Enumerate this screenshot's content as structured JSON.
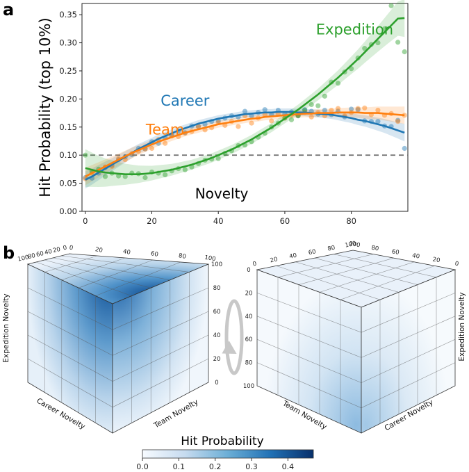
{
  "panels": {
    "a": "a",
    "b": "b"
  },
  "chart_data": [
    {
      "type": "line",
      "panel": "a",
      "ylabel": "Hit Probability (top 10%)",
      "xlabel": "Novelty",
      "xlim": [
        -1,
        97
      ],
      "ylim": [
        0,
        0.37
      ],
      "xticks": [
        0,
        20,
        40,
        60,
        80
      ],
      "yticks": [
        0.0,
        0.05,
        0.1,
        0.15,
        0.2,
        0.25,
        0.3,
        0.35
      ],
      "baseline": 0.1,
      "series": [
        {
          "name": "Career",
          "color": "#1f77b4",
          "x": [
            0,
            2,
            4,
            6,
            8,
            10,
            12,
            14,
            16,
            18,
            20,
            22,
            24,
            26,
            28,
            30,
            32,
            34,
            36,
            38,
            40,
            42,
            44,
            46,
            48,
            50,
            52,
            54,
            56,
            58,
            60,
            62,
            64,
            66,
            68,
            70,
            72,
            74,
            76,
            78,
            80,
            82,
            84,
            86,
            88,
            90,
            92,
            94,
            96
          ],
          "curve": [
            0.056,
            0.062,
            0.069,
            0.076,
            0.083,
            0.09,
            0.097,
            0.104,
            0.111,
            0.117,
            0.123,
            0.129,
            0.134,
            0.139,
            0.144,
            0.148,
            0.152,
            0.156,
            0.159,
            0.162,
            0.165,
            0.167,
            0.169,
            0.171,
            0.173,
            0.174,
            0.175,
            0.176,
            0.176,
            0.177,
            0.177,
            0.177,
            0.176,
            0.176,
            0.175,
            0.174,
            0.173,
            0.172,
            0.17,
            0.168,
            0.166,
            0.163,
            0.161,
            0.158,
            0.155,
            0.152,
            0.148,
            0.144,
            0.14
          ],
          "points_x": [
            0,
            2,
            4,
            6,
            8,
            10,
            12,
            14,
            16,
            18,
            20,
            22,
            24,
            26,
            28,
            30,
            32,
            34,
            36,
            38,
            40,
            42,
            44,
            46,
            48,
            50,
            52,
            54,
            56,
            58,
            60,
            62,
            64,
            66,
            68,
            70,
            72,
            74,
            76,
            78,
            80,
            82,
            84,
            86,
            88,
            90,
            92,
            94,
            96
          ],
          "points_y": [
            0.06,
            0.059,
            0.068,
            0.078,
            0.082,
            0.092,
            0.097,
            0.101,
            0.112,
            0.111,
            0.124,
            0.121,
            0.131,
            0.135,
            0.143,
            0.14,
            0.152,
            0.151,
            0.155,
            0.16,
            0.161,
            0.166,
            0.17,
            0.168,
            0.178,
            0.17,
            0.176,
            0.181,
            0.172,
            0.18,
            0.173,
            0.177,
            0.17,
            0.181,
            0.178,
            0.173,
            0.18,
            0.172,
            0.178,
            0.168,
            0.182,
            0.181,
            0.161,
            0.16,
            0.16,
            0.152,
            0.151,
            0.162,
            0.112
          ]
        },
        {
          "name": "Team",
          "color": "#ff7f0e",
          "x": [
            0,
            2,
            4,
            6,
            8,
            10,
            12,
            14,
            16,
            18,
            20,
            22,
            24,
            26,
            28,
            30,
            32,
            34,
            36,
            38,
            40,
            42,
            44,
            46,
            48,
            50,
            52,
            54,
            56,
            58,
            60,
            62,
            64,
            66,
            68,
            70,
            72,
            74,
            76,
            78,
            80,
            82,
            84,
            86,
            88,
            90,
            92,
            94,
            96
          ],
          "curve": [
            0.062,
            0.068,
            0.074,
            0.08,
            0.086,
            0.092,
            0.098,
            0.104,
            0.109,
            0.114,
            0.119,
            0.124,
            0.128,
            0.132,
            0.136,
            0.14,
            0.143,
            0.146,
            0.149,
            0.152,
            0.155,
            0.157,
            0.159,
            0.161,
            0.163,
            0.165,
            0.166,
            0.168,
            0.169,
            0.17,
            0.171,
            0.172,
            0.173,
            0.174,
            0.174,
            0.175,
            0.175,
            0.175,
            0.176,
            0.176,
            0.176,
            0.176,
            0.175,
            0.175,
            0.175,
            0.174,
            0.173,
            0.172,
            0.171
          ],
          "points_x": [
            0,
            2,
            4,
            6,
            8,
            10,
            12,
            14,
            16,
            18,
            20,
            22,
            24,
            26,
            28,
            30,
            32,
            34,
            36,
            38,
            40,
            42,
            44,
            46,
            48,
            50,
            52,
            54,
            56,
            58,
            60,
            62,
            64,
            66,
            68,
            70,
            72,
            74,
            76,
            78,
            80,
            82,
            84,
            86,
            88,
            90,
            92,
            94,
            96
          ],
          "points_y": [
            0.058,
            0.068,
            0.071,
            0.079,
            0.08,
            0.094,
            0.092,
            0.103,
            0.107,
            0.111,
            0.112,
            0.128,
            0.121,
            0.134,
            0.133,
            0.139,
            0.142,
            0.151,
            0.145,
            0.149,
            0.158,
            0.153,
            0.16,
            0.151,
            0.17,
            0.157,
            0.166,
            0.172,
            0.161,
            0.173,
            0.166,
            0.172,
            0.171,
            0.176,
            0.168,
            0.176,
            0.17,
            0.18,
            0.183,
            0.17,
            0.176,
            0.183,
            0.184,
            0.172,
            0.18,
            0.171,
            0.174,
            0.16,
            0.171
          ]
        },
        {
          "name": "Expedition",
          "color": "#2ca02c",
          "x": [
            0,
            2,
            4,
            6,
            8,
            10,
            12,
            14,
            16,
            18,
            20,
            22,
            24,
            26,
            28,
            30,
            32,
            34,
            36,
            38,
            40,
            42,
            44,
            46,
            48,
            50,
            52,
            54,
            56,
            58,
            60,
            62,
            64,
            66,
            68,
            70,
            72,
            74,
            76,
            78,
            80,
            82,
            84,
            86,
            88,
            90,
            92,
            94,
            96
          ],
          "curve": [
            0.077,
            0.074,
            0.071,
            0.069,
            0.068,
            0.067,
            0.066,
            0.066,
            0.066,
            0.067,
            0.068,
            0.07,
            0.072,
            0.074,
            0.077,
            0.08,
            0.083,
            0.087,
            0.091,
            0.095,
            0.1,
            0.105,
            0.11,
            0.116,
            0.122,
            0.128,
            0.135,
            0.142,
            0.149,
            0.157,
            0.165,
            0.173,
            0.181,
            0.19,
            0.199,
            0.208,
            0.218,
            0.228,
            0.238,
            0.249,
            0.26,
            0.271,
            0.283,
            0.295,
            0.307,
            0.319,
            0.331,
            0.343,
            0.344
          ],
          "points_x": [
            0,
            2,
            4,
            6,
            8,
            10,
            12,
            14,
            16,
            18,
            20,
            22,
            24,
            26,
            28,
            30,
            32,
            34,
            36,
            38,
            40,
            42,
            44,
            46,
            48,
            50,
            52,
            54,
            56,
            58,
            60,
            62,
            64,
            66,
            68,
            70,
            72,
            74,
            76,
            78,
            80,
            82,
            84,
            86,
            88,
            90,
            92,
            94,
            96
          ],
          "points_y": [
            0.1,
            0.071,
            0.075,
            0.062,
            0.068,
            0.063,
            0.062,
            0.068,
            0.067,
            0.06,
            0.07,
            0.068,
            0.065,
            0.072,
            0.076,
            0.074,
            0.079,
            0.085,
            0.091,
            0.093,
            0.094,
            0.103,
            0.108,
            0.117,
            0.118,
            0.124,
            0.132,
            0.139,
            0.15,
            0.157,
            0.166,
            0.163,
            0.17,
            0.18,
            0.19,
            0.188,
            0.205,
            0.23,
            0.228,
            0.248,
            0.254,
            0.273,
            0.29,
            0.297,
            0.3,
            0.325,
            0.366,
            0.301,
            0.284
          ]
        }
      ]
    },
    {
      "type": "heatmap",
      "panel": "b",
      "subtype": "3d-cube",
      "colorbar_title": "Hit Probability",
      "colorbar_ticks": [
        0.0,
        0.1,
        0.2,
        0.3,
        0.4
      ],
      "colorbar_range": [
        0.0,
        0.47
      ],
      "left_cube": {
        "axes": [
          "Expedition Novelty",
          "Career Novelty",
          "Team Novelty"
        ],
        "top_ticks_left": [
          "100",
          "80",
          "60",
          "40",
          "20",
          "0"
        ],
        "top_ticks_right": [
          "0",
          "20",
          "40",
          "60",
          "80",
          "100"
        ],
        "right_ticks": [
          "100",
          "80",
          "60",
          "40",
          "20",
          "0"
        ],
        "max_value": 0.47,
        "hotspot": "top-front corner (high expedition novelty)"
      },
      "right_cube": {
        "axes": [
          "Expedition Novelty",
          "Team Novelty",
          "Career Novelty"
        ],
        "top_ticks_left": [
          "0",
          "20",
          "40",
          "60",
          "80",
          "100"
        ],
        "top_ticks_right": [
          "100",
          "80",
          "60",
          "40",
          "20",
          "0"
        ],
        "left_ticks": [
          "0",
          "20",
          "40",
          "60",
          "80",
          "100"
        ],
        "max_value": 0.24,
        "hotspot": "bottom-front corner (low expedition novelty)"
      }
    }
  ]
}
